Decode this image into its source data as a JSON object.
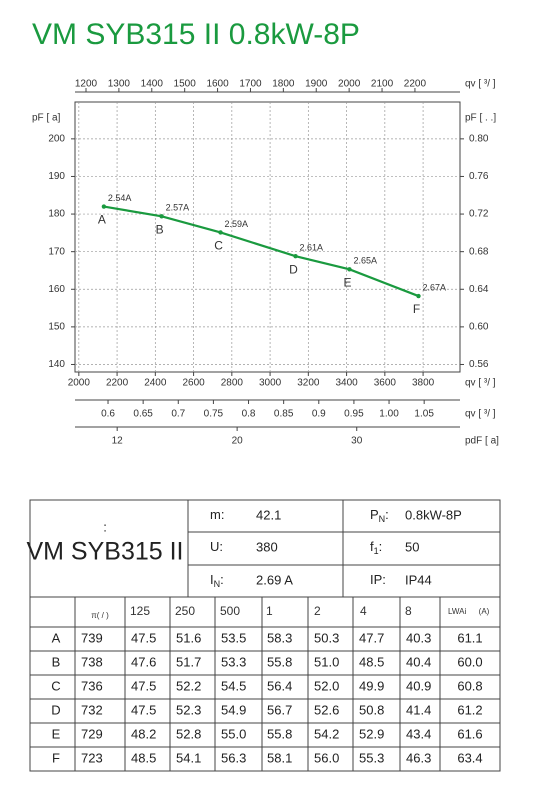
{
  "chart_data": {
    "type": "line",
    "title": "VM SYB315 II 0.8kW-8P",
    "color": "#1a9a3f",
    "x": [
      2131,
      2433,
      2741,
      3133,
      3415,
      3776
    ],
    "values": [
      182.0,
      179.4,
      175.1,
      168.8,
      165.3,
      158.2
    ],
    "point_labels": [
      "2.54A",
      "2.57A",
      "2.59A",
      "2.61A",
      "2.65A",
      "2.67A"
    ],
    "point_letters": [
      "A",
      "B",
      "C",
      "D",
      "E",
      "F"
    ],
    "grid": true,
    "xlabel": "qv [ ³/ ]",
    "xlim": [
      1980,
      3993
    ],
    "xticks": [
      2000,
      2200,
      2400,
      2600,
      2800,
      3000,
      3200,
      3400,
      3600,
      3800
    ],
    "ylabel": "pF [ a]",
    "ylim": [
      138,
      209.8
    ],
    "yticks": [
      140,
      150,
      160,
      170,
      180,
      190,
      200
    ],
    "y2label": "pF [ . .]",
    "y2lim": [
      0.552,
      0.8392
    ],
    "y2ticks": [
      0.56,
      {
        "value": 0.6,
        "label": "0.60"
      },
      0.64,
      0.68,
      0.72,
      0.76,
      {
        "value": 0.8,
        "label": "0.80"
      }
    ],
    "x2label": "qv [ ³/ ]",
    "x2lim": [
      1166.6,
      2337
    ],
    "x2ticks": [
      1200,
      1300,
      1400,
      1500,
      1600,
      1700,
      1800,
      1900,
      2000,
      2100,
      2200
    ],
    "x3label": "qv [ ³/ ]",
    "x3lim": [
      0.553,
      1.101
    ],
    "x3ticks": [
      0.6,
      0.65,
      0.7,
      0.75,
      0.8,
      0.85,
      0.9,
      0.95,
      {
        "value": 1,
        "label": "1.00"
      },
      1.05
    ],
    "x4label": "pdF [ a]",
    "x4scale": "sqrt",
    "x4lim": [
      9.67,
      40.26
    ],
    "x4ticks": [
      12,
      20,
      30
    ]
  },
  "table": {
    "model_mark": ":",
    "model": "VM SYB315 II",
    "specs": [
      [
        {
          "label": "m:",
          "value": "42.1"
        },
        {
          "label": "P",
          "sub": "N",
          "colon": ":",
          "value": "0.8kW-8P"
        }
      ],
      [
        {
          "label": "U:",
          "value": "380"
        },
        {
          "label": "f",
          "sub": "1",
          "colon": ":",
          "value": "50"
        }
      ],
      [
        {
          "label": "I",
          "sub": "N",
          "colon": ":",
          "value": "2.69  A"
        },
        {
          "label": "IP:",
          "value": "IP44"
        }
      ]
    ],
    "header": [
      "π( / )",
      "125",
      "250",
      "500",
      "1",
      "2",
      "4",
      "8",
      "LWAi",
      "(A)"
    ],
    "rows": [
      [
        "A",
        "739",
        "47.5",
        "51.6",
        "53.5",
        "58.3",
        "50.3",
        "47.7",
        "40.3",
        "61.1"
      ],
      [
        "B",
        "738",
        "47.6",
        "51.7",
        "53.3",
        "55.8",
        "51.0",
        "48.5",
        "40.4",
        "60.0"
      ],
      [
        "C",
        "736",
        "47.5",
        "52.2",
        "54.5",
        "56.4",
        "52.0",
        "49.9",
        "40.9",
        "60.8"
      ],
      [
        "D",
        "732",
        "47.5",
        "52.3",
        "54.9",
        "56.7",
        "52.6",
        "50.8",
        "41.4",
        "61.2"
      ],
      [
        "E",
        "729",
        "48.2",
        "52.8",
        "55.0",
        "55.8",
        "54.2",
        "52.9",
        "43.4",
        "61.6"
      ],
      [
        "F",
        "723",
        "48.5",
        "54.1",
        "56.3",
        "58.1",
        "56.0",
        "55.3",
        "46.3",
        "63.4"
      ]
    ]
  }
}
